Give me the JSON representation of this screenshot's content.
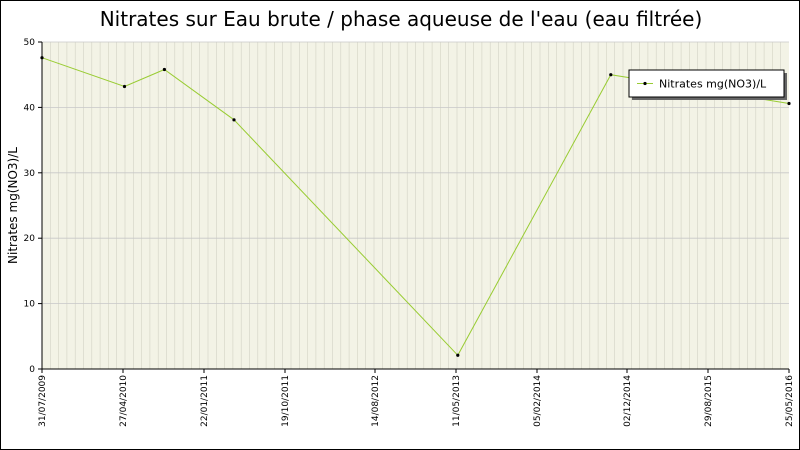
{
  "chart_data": {
    "type": "line",
    "title": "Nitrates sur Eau brute / phase aqueuse de l'eau (eau filtrée)",
    "ylabel": "Nitrates mg(NO3)/L",
    "xlabel": "",
    "ylim": [
      0,
      50
    ],
    "yticks": [
      0,
      10,
      20,
      30,
      40,
      50
    ],
    "x_ticks": [
      "31/07/2009",
      "27/04/2010",
      "22/01/2011",
      "19/10/2011",
      "14/08/2012",
      "11/05/2013",
      "05/02/2014",
      "02/12/2014",
      "29/08/2015",
      "25/05/2016"
    ],
    "x_range": [
      "31/07/2009",
      "25/05/2016"
    ],
    "grid": true,
    "legend_position": "top-right",
    "series": [
      {
        "name": "Nitrates mg(NO3)/L",
        "color": "#99cc33",
        "points": [
          {
            "x": "31/07/2009",
            "y": 47.6
          },
          {
            "x": "02/05/2010",
            "y": 43.2
          },
          {
            "x": "12/09/2010",
            "y": 45.8
          },
          {
            "x": "02/05/2011",
            "y": 38.1
          },
          {
            "x": "17/05/2013",
            "y": 2.1
          },
          {
            "x": "09/10/2014",
            "y": 45.0
          },
          {
            "x": "25/05/2016",
            "y": 40.6
          }
        ]
      }
    ]
  }
}
